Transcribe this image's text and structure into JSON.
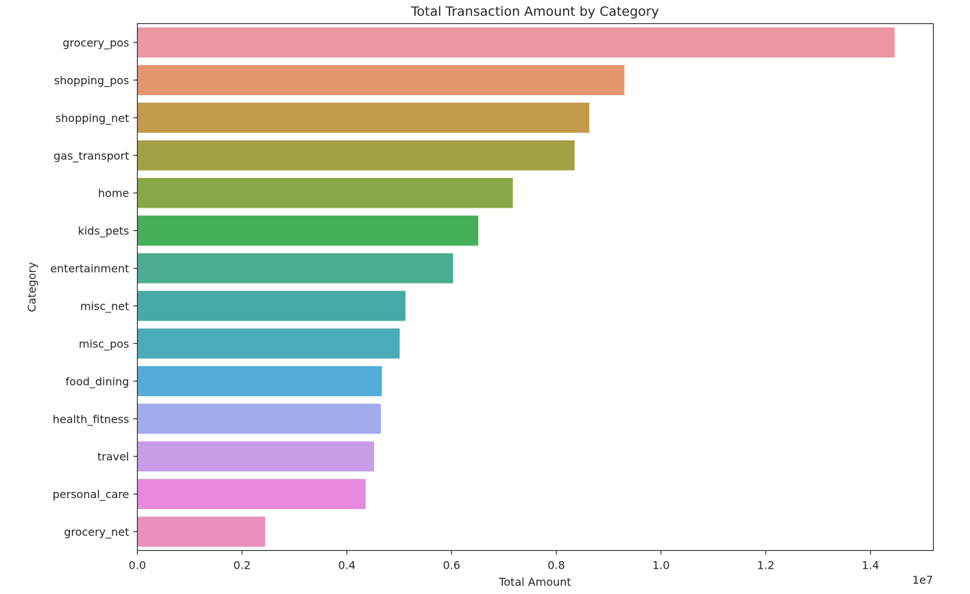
{
  "chart_data": {
    "type": "bar",
    "orientation": "horizontal",
    "title": "Total Transaction Amount by Category",
    "xlabel": "Total Amount",
    "ylabel": "Category",
    "x_offset_label": "1e7",
    "xlim": [
      0,
      15200000
    ],
    "xticks": [
      0,
      2000000,
      4000000,
      6000000,
      8000000,
      10000000,
      12000000,
      14000000
    ],
    "xtick_labels": [
      "0.0",
      "0.2",
      "0.4",
      "0.6",
      "0.8",
      "1.0",
      "1.2",
      "1.4"
    ],
    "grid": false,
    "categories": [
      "grocery_pos",
      "shopping_pos",
      "shopping_net",
      "gas_transport",
      "home",
      "kids_pets",
      "entertainment",
      "misc_net",
      "misc_pos",
      "food_dining",
      "health_fitness",
      "travel",
      "personal_care",
      "grocery_net"
    ],
    "values": [
      14460000,
      9300000,
      8630000,
      8350000,
      7170000,
      6510000,
      6030000,
      5120000,
      5010000,
      4670000,
      4650000,
      4520000,
      4360000,
      2440000
    ],
    "colors": [
      "#EC96A2",
      "#E4966D",
      "#C39B4A",
      "#A4A145",
      "#8AA847",
      "#46AF5A",
      "#4BAD8F",
      "#48AAA6",
      "#4BACB9",
      "#54ACD9",
      "#A2ABEB",
      "#C99CE8",
      "#E789DE",
      "#E891BE"
    ]
  }
}
